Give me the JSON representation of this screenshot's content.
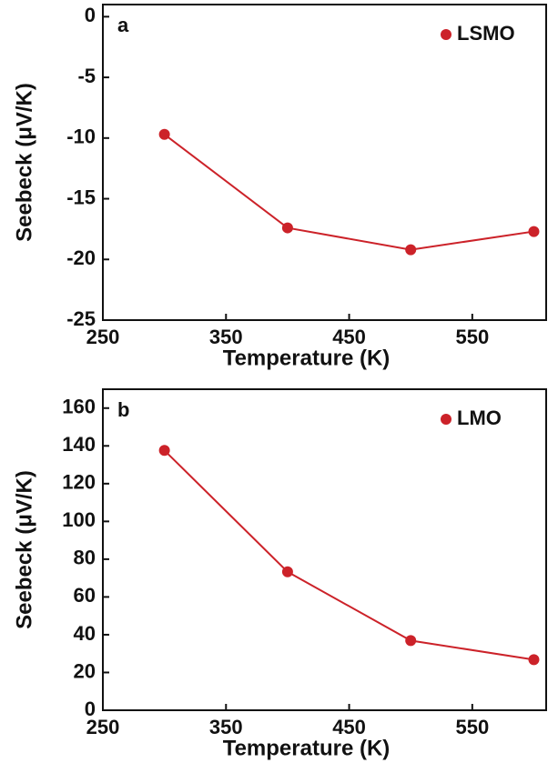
{
  "chart_data": [
    {
      "type": "line",
      "panel_label": "a",
      "x_label": "Temperature (K)",
      "y_label": "Seebeck (μV/K)",
      "xlim": [
        250,
        610
      ],
      "xticks": [
        250,
        350,
        450,
        550
      ],
      "ylim": [
        -25,
        1
      ],
      "yticks": [
        0,
        -5,
        -10,
        -15,
        -20,
        -25
      ],
      "series": [
        {
          "name": "LSMO",
          "color": "#cc2229",
          "x": [
            300,
            400,
            500,
            600
          ],
          "values": [
            -9.7,
            -17.4,
            -19.2,
            -17.7
          ]
        }
      ]
    },
    {
      "type": "line",
      "panel_label": "b",
      "x_label": "Temperature (K)",
      "y_label": "Seebeck (μV/K)",
      "xlim": [
        250,
        610
      ],
      "xticks": [
        250,
        350,
        450,
        550
      ],
      "ylim": [
        0,
        170
      ],
      "yticks": [
        0,
        20,
        40,
        60,
        80,
        100,
        120,
        140,
        160
      ],
      "series": [
        {
          "name": "LMO",
          "color": "#cc2229",
          "x": [
            300,
            400,
            500,
            600
          ],
          "values": [
            137.6,
            73.3,
            36.9,
            26.8
          ]
        }
      ]
    }
  ]
}
